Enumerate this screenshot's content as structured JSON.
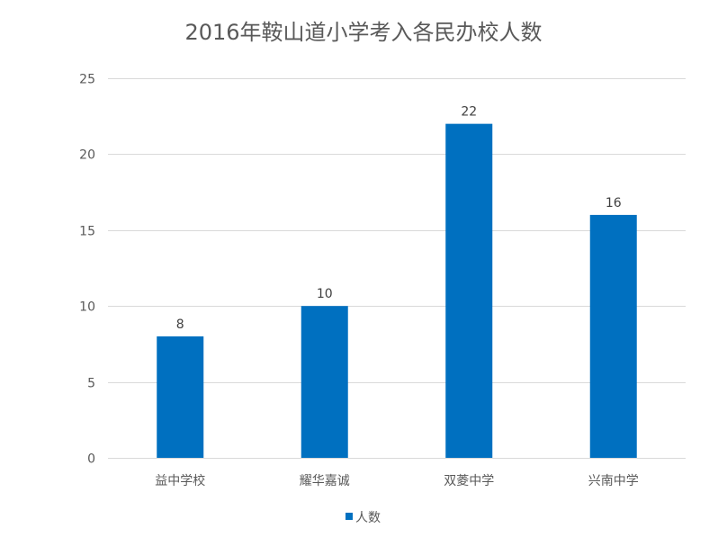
{
  "chart_data": {
    "type": "bar",
    "title": "2016年鞍山道小学考入各民办校人数",
    "categories": [
      "益中学校",
      "耀华嘉诚",
      "双菱中学",
      "兴南中学"
    ],
    "series": [
      {
        "name": "人数",
        "values": [
          8,
          10,
          22,
          16
        ],
        "color": "#0070c0"
      }
    ],
    "ylim": [
      0,
      25
    ],
    "yticks": [
      0,
      5,
      10,
      15,
      20,
      25
    ],
    "grid": true,
    "data_labels": true,
    "legend": "bottom"
  }
}
